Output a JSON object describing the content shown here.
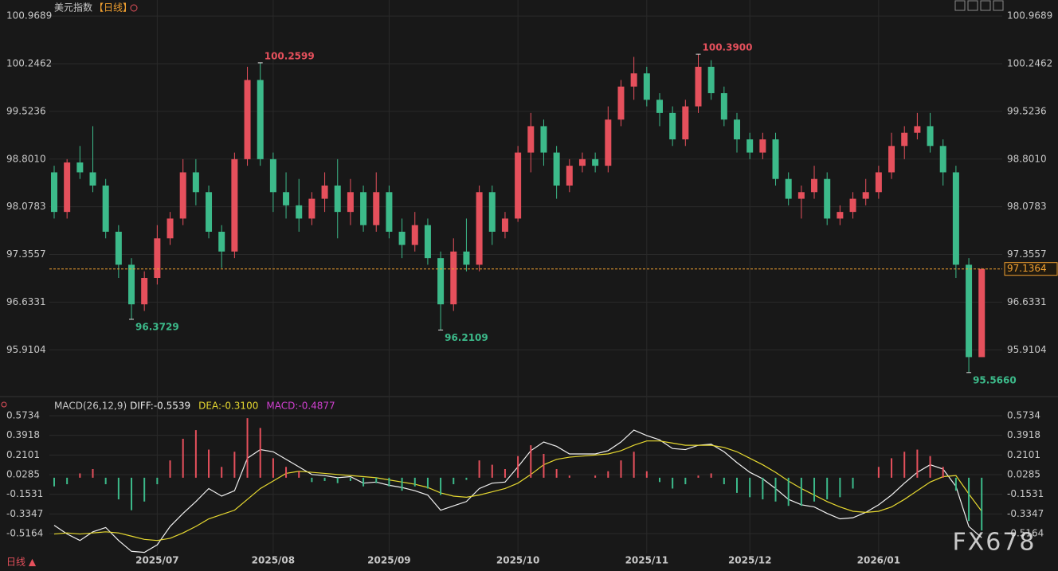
{
  "chart_data": [
    {
      "type": "candlestick",
      "title": "美元指数",
      "subtitle": "【日线】",
      "categories": [
        null,
        null,
        null,
        null,
        null,
        null,
        null,
        null,
        "2025/07",
        null,
        null,
        null,
        null,
        null,
        null,
        null,
        null,
        "2025/08",
        null,
        null,
        null,
        null,
        null,
        null,
        null,
        null,
        "2025/09",
        null,
        null,
        null,
        null,
        null,
        null,
        null,
        null,
        null,
        "2025/10",
        null,
        null,
        null,
        null,
        null,
        null,
        null,
        null,
        null,
        "2025/11",
        null,
        null,
        null,
        null,
        null,
        null,
        null,
        "2025/12",
        null,
        null,
        null,
        null,
        null,
        null,
        null,
        null,
        null,
        "2026/01",
        null,
        null,
        null,
        null,
        null,
        null,
        null,
        null
      ],
      "candles": [
        [
          98.6,
          98.7,
          97.9,
          98.0
        ],
        [
          98.0,
          98.8,
          97.9,
          98.75
        ],
        [
          98.75,
          99.0,
          98.5,
          98.6
        ],
        [
          98.6,
          99.3,
          98.3,
          98.4
        ],
        [
          98.4,
          98.5,
          97.6,
          97.7
        ],
        [
          97.7,
          97.8,
          97.0,
          97.2
        ],
        [
          97.2,
          97.3,
          96.3729,
          96.6
        ],
        [
          96.6,
          97.1,
          96.5,
          97.0
        ],
        [
          97.0,
          97.8,
          96.9,
          97.6
        ],
        [
          97.6,
          98.0,
          97.5,
          97.9
        ],
        [
          97.9,
          98.8,
          97.8,
          98.6
        ],
        [
          98.6,
          98.8,
          98.1,
          98.3
        ],
        [
          98.3,
          98.4,
          97.6,
          97.7
        ],
        [
          97.7,
          97.8,
          97.15,
          97.4
        ],
        [
          97.4,
          98.9,
          97.3,
          98.8
        ],
        [
          98.8,
          100.2,
          98.7,
          100.0
        ],
        [
          100.0,
          100.2599,
          98.7,
          98.8
        ],
        [
          98.8,
          98.9,
          98.0,
          98.3
        ],
        [
          98.3,
          98.6,
          97.9,
          98.1
        ],
        [
          98.1,
          98.5,
          97.7,
          97.9
        ],
        [
          97.9,
          98.3,
          97.8,
          98.2
        ],
        [
          98.2,
          98.6,
          98.0,
          98.4
        ],
        [
          98.4,
          98.8,
          97.6,
          98.0
        ],
        [
          98.0,
          98.5,
          97.8,
          98.3
        ],
        [
          98.3,
          98.4,
          97.7,
          97.8
        ],
        [
          97.8,
          98.6,
          97.7,
          98.3
        ],
        [
          98.3,
          98.4,
          97.6,
          97.7
        ],
        [
          97.7,
          97.9,
          97.3,
          97.5
        ],
        [
          97.5,
          98.0,
          97.4,
          97.8
        ],
        [
          97.8,
          97.9,
          97.2,
          97.3
        ],
        [
          97.3,
          97.4,
          96.2109,
          96.6
        ],
        [
          96.6,
          97.6,
          96.5,
          97.4
        ],
        [
          97.4,
          97.9,
          97.1,
          97.2
        ],
        [
          97.2,
          98.4,
          97.1,
          98.3
        ],
        [
          98.3,
          98.4,
          97.5,
          97.7
        ],
        [
          97.7,
          98.0,
          97.6,
          97.9
        ],
        [
          97.9,
          99.0,
          97.85,
          98.9
        ],
        [
          98.9,
          99.5,
          98.6,
          99.3
        ],
        [
          99.3,
          99.4,
          98.7,
          98.9
        ],
        [
          98.9,
          99.0,
          98.2,
          98.4
        ],
        [
          98.4,
          98.8,
          98.3,
          98.7
        ],
        [
          98.7,
          98.9,
          98.6,
          98.8
        ],
        [
          98.8,
          98.9,
          98.6,
          98.7
        ],
        [
          98.7,
          99.6,
          98.6,
          99.4
        ],
        [
          99.4,
          100.0,
          99.3,
          99.9
        ],
        [
          99.9,
          100.35,
          99.7,
          100.1
        ],
        [
          100.1,
          100.2,
          99.6,
          99.7
        ],
        [
          99.7,
          99.8,
          99.3,
          99.5
        ],
        [
          99.5,
          99.6,
          99.0,
          99.1
        ],
        [
          99.1,
          99.7,
          99.0,
          99.6
        ],
        [
          99.6,
          100.39,
          99.5,
          100.2
        ],
        [
          100.2,
          100.3,
          99.7,
          99.8
        ],
        [
          99.8,
          99.9,
          99.3,
          99.4
        ],
        [
          99.4,
          99.5,
          98.9,
          99.1
        ],
        [
          99.1,
          99.2,
          98.8,
          98.9
        ],
        [
          98.9,
          99.2,
          98.8,
          99.1
        ],
        [
          99.1,
          99.2,
          98.4,
          98.5
        ],
        [
          98.5,
          98.6,
          98.1,
          98.2
        ],
        [
          98.2,
          98.4,
          97.9,
          98.3
        ],
        [
          98.3,
          98.7,
          98.2,
          98.5
        ],
        [
          98.5,
          98.6,
          97.8,
          97.9
        ],
        [
          97.9,
          98.1,
          97.8,
          98.0
        ],
        [
          98.0,
          98.3,
          97.9,
          98.2
        ],
        [
          98.2,
          98.5,
          98.1,
          98.3
        ],
        [
          98.3,
          98.7,
          98.2,
          98.6
        ],
        [
          98.6,
          99.2,
          98.5,
          99.0
        ],
        [
          99.0,
          99.3,
          98.8,
          99.2
        ],
        [
          99.2,
          99.5,
          99.1,
          99.3
        ],
        [
          99.3,
          99.5,
          98.9,
          99.0
        ],
        [
          99.0,
          99.1,
          98.4,
          98.6
        ],
        [
          98.6,
          98.7,
          97.0,
          97.2
        ],
        [
          97.2,
          97.3,
          95.566,
          95.8
        ],
        [
          95.8,
          97.15,
          95.8,
          97.1364
        ]
      ],
      "up_color": "#e5505c",
      "down_color": "#3cba8a",
      "ylim": [
        95.25,
        101.2
      ],
      "yticks": [
        95.9104,
        96.6331,
        97.3557,
        98.0783,
        {
          "value": 98.801,
          "label": "98.8010"
        },
        99.5236,
        100.2462,
        100.9689
      ],
      "annotations": [
        {
          "value": 100.2599,
          "label": "100.2599"
        },
        {
          "value": 96.3729,
          "label": "96.3729"
        },
        {
          "value": 96.2109,
          "label": "96.2109"
        },
        {
          "value": 100.39,
          "label": "100.3900"
        },
        {
          "value": 95.566,
          "label": "95.5660"
        }
      ],
      "last_price": {
        "value": 97.1364,
        "label": "97.1364",
        "color": "#f0a030"
      },
      "grid": true
    },
    {
      "type": "macd",
      "title": "MACD(26,12,9)",
      "series": [
        {
          "name": "DIFF:-0.5539",
          "color": "#f0f0f0",
          "values": [
            -0.44,
            -0.52,
            -0.58,
            -0.5,
            -0.46,
            -0.58,
            -0.68,
            -0.69,
            -0.62,
            -0.45,
            -0.33,
            -0.22,
            -0.1,
            -0.17,
            -0.12,
            0.18,
            0.26,
            0.24,
            0.17,
            0.1,
            0.03,
            0.02,
            0.0,
            0.01,
            -0.05,
            -0.04,
            -0.07,
            -0.09,
            -0.12,
            -0.16,
            -0.3,
            -0.26,
            -0.22,
            -0.1,
            -0.05,
            -0.04,
            0.1,
            0.25,
            0.33,
            0.29,
            0.22,
            0.22,
            0.22,
            0.25,
            0.33,
            0.44,
            0.39,
            0.35,
            0.27,
            0.26,
            0.3,
            0.31,
            0.24,
            0.14,
            0.05,
            -0.01,
            -0.1,
            -0.2,
            -0.25,
            -0.27,
            -0.33,
            -0.38,
            -0.37,
            -0.32,
            -0.25,
            -0.16,
            -0.05,
            0.05,
            0.12,
            0.08,
            -0.08,
            -0.45,
            -0.5539
          ]
        },
        {
          "name": "DEA:-0.3100",
          "color": "#e6d830",
          "values": [
            -0.52,
            -0.51,
            -0.52,
            -0.51,
            -0.5,
            -0.51,
            -0.54,
            -0.57,
            -0.58,
            -0.56,
            -0.51,
            -0.45,
            -0.38,
            -0.34,
            -0.3,
            -0.2,
            -0.1,
            -0.03,
            0.04,
            0.06,
            0.05,
            0.04,
            0.03,
            0.02,
            0.01,
            0.0,
            -0.02,
            -0.04,
            -0.06,
            -0.09,
            -0.14,
            -0.17,
            -0.18,
            -0.16,
            -0.13,
            -0.1,
            -0.05,
            0.03,
            0.12,
            0.17,
            0.19,
            0.2,
            0.21,
            0.22,
            0.25,
            0.3,
            0.34,
            0.34,
            0.32,
            0.3,
            0.3,
            0.3,
            0.28,
            0.24,
            0.18,
            0.12,
            0.05,
            -0.03,
            -0.1,
            -0.16,
            -0.22,
            -0.27,
            -0.31,
            -0.32,
            -0.31,
            -0.27,
            -0.2,
            -0.12,
            -0.04,
            0.01,
            0.02,
            -0.15,
            -0.31
          ]
        },
        {
          "name": "MACD:-0.4877",
          "color": "#d040d0",
          "bar": true,
          "up_color": "#e5505c",
          "down_color": "#3cba8a",
          "values": [
            -0.08,
            -0.06,
            0.04,
            0.08,
            -0.06,
            -0.2,
            -0.3,
            -0.22,
            -0.06,
            0.16,
            0.36,
            0.44,
            0.26,
            0.1,
            0.24,
            0.55,
            0.46,
            0.18,
            0.1,
            0.06,
            -0.04,
            -0.03,
            -0.05,
            -0.03,
            -0.08,
            -0.05,
            -0.08,
            -0.12,
            -0.08,
            -0.1,
            -0.16,
            -0.06,
            -0.02,
            0.16,
            0.12,
            0.08,
            0.2,
            0.3,
            0.22,
            0.08,
            0.02,
            0.0,
            0.02,
            0.06,
            0.16,
            0.24,
            0.06,
            -0.04,
            -0.1,
            -0.06,
            0.02,
            0.04,
            -0.06,
            -0.14,
            -0.18,
            -0.2,
            -0.22,
            -0.26,
            -0.26,
            -0.22,
            -0.2,
            -0.18,
            -0.1,
            0.0,
            0.1,
            0.18,
            0.24,
            0.26,
            0.2,
            0.1,
            -0.12,
            -0.4,
            -0.4877
          ]
        }
      ],
      "ylim": [
        -0.7,
        0.735
      ],
      "yticks": [
        -0.5164,
        -0.3347,
        -0.1531,
        0.0285,
        0.2101,
        0.3918,
        0.5734
      ]
    }
  ],
  "footer": {
    "period": "日线 ▲"
  },
  "watermark": "FX678"
}
